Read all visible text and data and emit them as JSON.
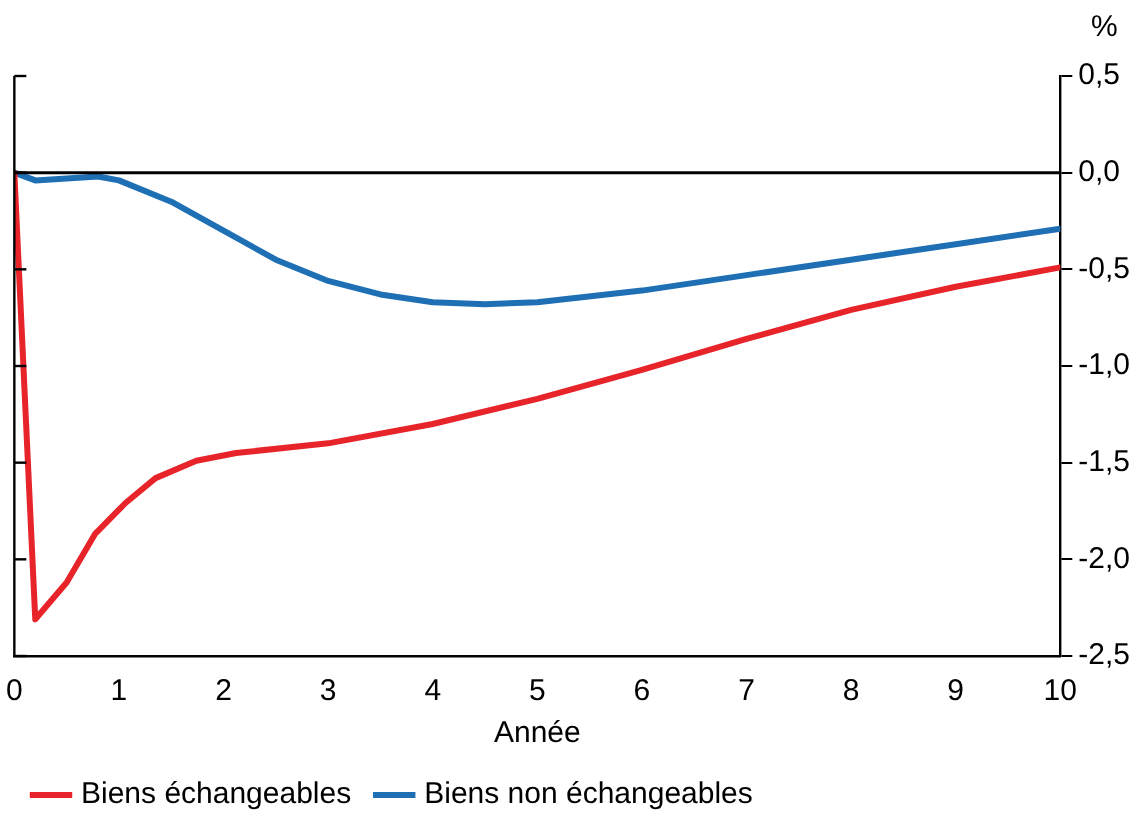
{
  "chart_data": {
    "type": "line",
    "xlabel": "Année",
    "ylabel": "%",
    "xlim": [
      0,
      10
    ],
    "xticks": [
      0,
      1,
      2,
      3,
      4,
      5,
      6,
      7,
      8,
      9,
      10
    ],
    "ylim": [
      -2.5,
      0.5
    ],
    "yticks": [
      {
        "value": 0.5,
        "label": "0,5"
      },
      {
        "value": 0,
        "label": "0,0"
      },
      {
        "value": -0.5,
        "label": "-0,5"
      },
      {
        "value": -1,
        "label": "-1,0"
      },
      {
        "value": -1.5,
        "label": "-1,5"
      },
      {
        "value": -2,
        "label": "-2,0"
      },
      {
        "value": -2.5,
        "label": "-2,5"
      }
    ],
    "series": [
      {
        "name": "Biens échangeables",
        "color": "#e8242b",
        "x": [
          0,
          0.2,
          0.5,
          0.77,
          1.06,
          1.35,
          1.74,
          2.12,
          3,
          4,
          5,
          6,
          7,
          8,
          9,
          10
        ],
        "values": [
          0,
          -2.31,
          -2.12,
          -1.87,
          -1.71,
          -1.58,
          -1.49,
          -1.45,
          -1.4,
          -1.3,
          -1.17,
          -1.02,
          -0.86,
          -0.71,
          -0.59,
          -0.49
        ]
      },
      {
        "name": "Biens non échangeables",
        "color": "#1f6fb5",
        "x": [
          0,
          0.2,
          0.5,
          0.8,
          1,
          1.5,
          2,
          2.5,
          3,
          3.5,
          4,
          4.5,
          5,
          6,
          7,
          8,
          9,
          10
        ],
        "values": [
          0,
          -0.04,
          -0.03,
          -0.02,
          -0.04,
          -0.15,
          -0.3,
          -0.45,
          -0.56,
          -0.63,
          -0.67,
          -0.68,
          -0.67,
          -0.61,
          -0.53,
          -0.45,
          -0.37,
          -0.29
        ]
      }
    ],
    "ref_lines": [
      {
        "axis": "y",
        "value": 0,
        "color": "#000000"
      }
    ],
    "grid": false,
    "legend": "bottom",
    "marker": "none",
    "line_style": "solid"
  }
}
